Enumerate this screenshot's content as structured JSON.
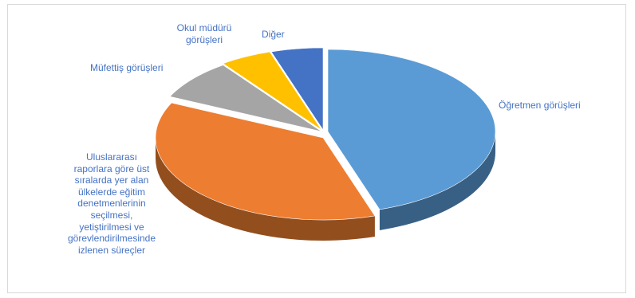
{
  "chart_data": {
    "type": "pie",
    "title": "",
    "style": "3d-exploded",
    "slices": [
      {
        "label": "Öğretmen görüşleri",
        "value": 45,
        "color": "#5b9bd5"
      },
      {
        "label": "Uluslararası raporlara göre üst sıralarda yer alan ülkelerde eğitim denetmenlerinin seçilmesi, yetiştirilmesi ve görevlendirilmesinde izlenen süreçler",
        "value": 37,
        "color": "#ed7d31"
      },
      {
        "label": "Müfettiş görüşleri",
        "value": 8,
        "color": "#a5a5a5"
      },
      {
        "label": "Okul müdürü görüşleri",
        "value": 5,
        "color": "#ffc000"
      },
      {
        "label": "Diğer",
        "value": 5,
        "color": "#4472c4"
      }
    ]
  },
  "labels": {
    "ogretmen": "Öğretmen görüşleri",
    "mufettis": "Müfettiş görüşleri",
    "okul_line1": "Okul müdürü",
    "okul_line2": "görüşleri",
    "diger": "Diğer",
    "surec_lines": [
      "Uluslararası",
      "raporlara göre üst",
      "sıralarda yer alan",
      "ülkelerde eğitim",
      "denetmenlerinin",
      "seçilmesi,",
      "yetiştirilmesi ve",
      "görevlendirilmesinde",
      "izlenen süreçler"
    ]
  },
  "colors": {
    "label_text": "#4472c4",
    "border": "#d9d9d9"
  }
}
